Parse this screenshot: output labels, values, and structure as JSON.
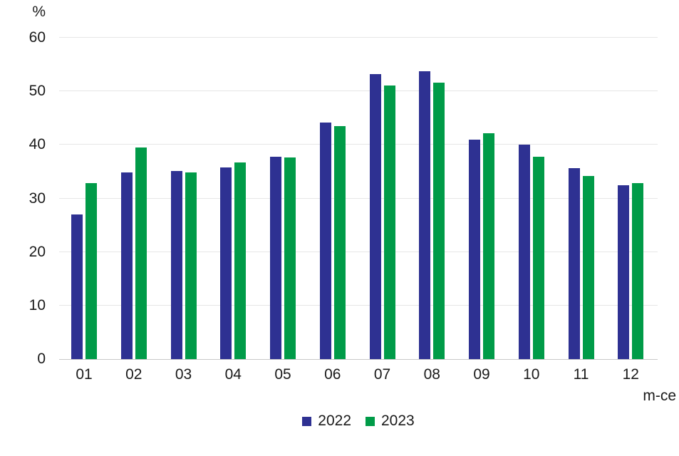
{
  "chart_data": {
    "type": "bar",
    "title": "",
    "unit_label": "%",
    "xlabel": "m-ce",
    "categories": [
      "01",
      "02",
      "03",
      "04",
      "05",
      "06",
      "07",
      "08",
      "09",
      "10",
      "11",
      "12"
    ],
    "series": [
      {
        "name": "2022",
        "color": "#2e3192",
        "values": [
          27.0,
          34.8,
          35.1,
          35.8,
          37.8,
          44.2,
          53.2,
          53.7,
          41.0,
          40.1,
          35.6,
          32.4
        ]
      },
      {
        "name": "2023",
        "color": "#009b48",
        "values": [
          32.9,
          39.5,
          34.9,
          36.7,
          37.7,
          43.5,
          51.1,
          51.6,
          42.2,
          37.8,
          34.2,
          32.9
        ]
      }
    ],
    "ylim": [
      0,
      60
    ],
    "ytick_interval": 10,
    "yticks": [
      "0",
      "10",
      "20",
      "30",
      "40",
      "50",
      "60"
    ],
    "grid": true,
    "legend_position": "bottom-center"
  },
  "colors": {
    "background": "#ffffff",
    "text": "#1a1a1a",
    "gridline": "#e6e6e6",
    "baseline": "#c9c9c9",
    "series_2022": "#2e3192",
    "series_2023": "#009b48"
  }
}
